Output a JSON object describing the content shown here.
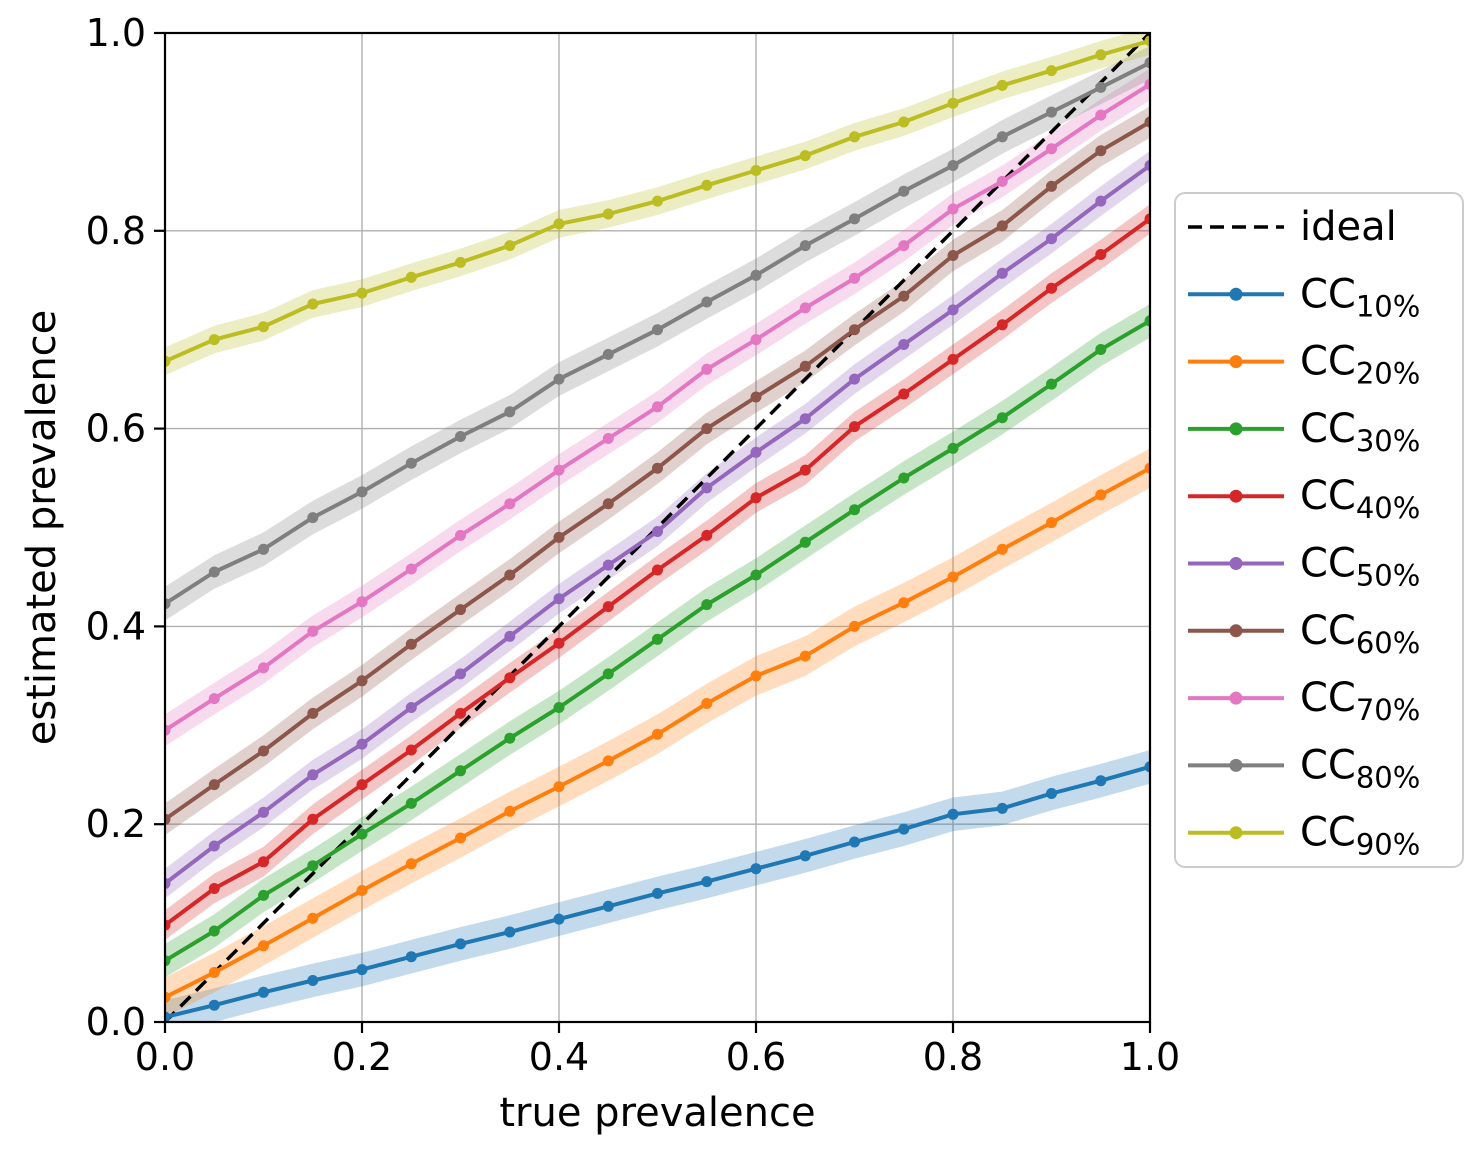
{
  "chart_data": {
    "type": "line",
    "title": "",
    "xlabel": "true prevalence",
    "ylabel": "estimated prevalence",
    "xlim": [
      0.0,
      1.0
    ],
    "ylim": [
      0.0,
      1.0
    ],
    "xticks": [
      0.0,
      0.2,
      0.4,
      0.6,
      0.8,
      1.0
    ],
    "yticks": [
      0.0,
      0.2,
      0.4,
      0.6,
      0.8,
      1.0
    ],
    "xtick_labels": [
      "0.0",
      "0.2",
      "0.4",
      "0.6",
      "0.8",
      "1.0"
    ],
    "ytick_labels": [
      "0.0",
      "0.2",
      "0.4",
      "0.6",
      "0.8",
      "1.0"
    ],
    "grid": true,
    "grid_color": "#b0b0b0",
    "legend_position": "right-outside",
    "legend_border_color": "#cccccc",
    "band_alpha": 0.27,
    "x": [
      0.0,
      0.05,
      0.1,
      0.15,
      0.2,
      0.25,
      0.3,
      0.35,
      0.4,
      0.45,
      0.5,
      0.55,
      0.6,
      0.65,
      0.7,
      0.75,
      0.8,
      0.85,
      0.9,
      0.95,
      1.0
    ],
    "series": [
      {
        "name": "ideal",
        "label": "ideal",
        "label_subscript": "",
        "color": "#000000",
        "line_style": "dashed",
        "markers": false,
        "band": 0,
        "y": [
          0.0,
          0.05,
          0.1,
          0.15,
          0.2,
          0.25,
          0.3,
          0.35,
          0.4,
          0.45,
          0.5,
          0.55,
          0.6,
          0.65,
          0.7,
          0.75,
          0.8,
          0.85,
          0.9,
          0.95,
          1.0
        ]
      },
      {
        "name": "CC-10",
        "label": "CC",
        "label_subscript": "10%",
        "color": "#1f77b4",
        "line_style": "solid",
        "markers": true,
        "band": 0.017,
        "y": [
          0.005,
          0.017,
          0.03,
          0.042,
          0.053,
          0.066,
          0.079,
          0.091,
          0.104,
          0.117,
          0.13,
          0.142,
          0.155,
          0.168,
          0.182,
          0.195,
          0.21,
          0.216,
          0.231,
          0.244,
          0.258
        ]
      },
      {
        "name": "CC-20",
        "label": "CC",
        "label_subscript": "20%",
        "color": "#ff7f0e",
        "line_style": "solid",
        "markers": true,
        "band": 0.02,
        "y": [
          0.025,
          0.05,
          0.077,
          0.105,
          0.133,
          0.16,
          0.186,
          0.213,
          0.238,
          0.264,
          0.291,
          0.322,
          0.35,
          0.37,
          0.4,
          0.424,
          0.45,
          0.478,
          0.505,
          0.533,
          0.56
        ]
      },
      {
        "name": "CC-30",
        "label": "CC",
        "label_subscript": "30%",
        "color": "#2ca02c",
        "line_style": "solid",
        "markers": true,
        "band": 0.017,
        "y": [
          0.062,
          0.092,
          0.128,
          0.158,
          0.19,
          0.221,
          0.254,
          0.287,
          0.318,
          0.352,
          0.387,
          0.422,
          0.452,
          0.485,
          0.518,
          0.55,
          0.58,
          0.611,
          0.645,
          0.68,
          0.709
        ]
      },
      {
        "name": "CC-40",
        "label": "CC",
        "label_subscript": "40%",
        "color": "#d62728",
        "line_style": "solid",
        "markers": true,
        "band": 0.015,
        "y": [
          0.098,
          0.135,
          0.162,
          0.205,
          0.24,
          0.275,
          0.312,
          0.348,
          0.383,
          0.42,
          0.457,
          0.492,
          0.53,
          0.558,
          0.602,
          0.635,
          0.67,
          0.705,
          0.742,
          0.776,
          0.812
        ]
      },
      {
        "name": "CC-50",
        "label": "CC",
        "label_subscript": "50%",
        "color": "#9467bd",
        "line_style": "solid",
        "markers": true,
        "band": 0.015,
        "y": [
          0.14,
          0.178,
          0.212,
          0.25,
          0.281,
          0.318,
          0.352,
          0.39,
          0.428,
          0.462,
          0.496,
          0.54,
          0.576,
          0.61,
          0.65,
          0.685,
          0.72,
          0.757,
          0.792,
          0.83,
          0.866
        ]
      },
      {
        "name": "CC-60",
        "label": "CC",
        "label_subscript": "60%",
        "color": "#8c564b",
        "line_style": "solid",
        "markers": true,
        "band": 0.016,
        "y": [
          0.205,
          0.24,
          0.274,
          0.312,
          0.345,
          0.382,
          0.417,
          0.452,
          0.49,
          0.524,
          0.56,
          0.6,
          0.632,
          0.663,
          0.7,
          0.734,
          0.775,
          0.805,
          0.845,
          0.881,
          0.91
        ]
      },
      {
        "name": "CC-70",
        "label": "CC",
        "label_subscript": "70%",
        "color": "#e377c2",
        "line_style": "solid",
        "markers": true,
        "band": 0.016,
        "y": [
          0.295,
          0.327,
          0.358,
          0.395,
          0.425,
          0.458,
          0.492,
          0.524,
          0.558,
          0.59,
          0.622,
          0.66,
          0.69,
          0.722,
          0.752,
          0.785,
          0.822,
          0.85,
          0.883,
          0.917,
          0.948
        ]
      },
      {
        "name": "CC-80",
        "label": "CC",
        "label_subscript": "80%",
        "color": "#7f7f7f",
        "line_style": "solid",
        "markers": true,
        "band": 0.017,
        "y": [
          0.423,
          0.455,
          0.478,
          0.51,
          0.536,
          0.565,
          0.592,
          0.617,
          0.65,
          0.675,
          0.7,
          0.728,
          0.755,
          0.785,
          0.812,
          0.84,
          0.866,
          0.895,
          0.92,
          0.945,
          0.97
        ]
      },
      {
        "name": "CC-90",
        "label": "CC",
        "label_subscript": "90%",
        "color": "#bcbd22",
        "line_style": "solid",
        "markers": true,
        "band": 0.014,
        "y": [
          0.668,
          0.69,
          0.703,
          0.726,
          0.737,
          0.753,
          0.768,
          0.785,
          0.807,
          0.817,
          0.83,
          0.846,
          0.861,
          0.876,
          0.895,
          0.91,
          0.929,
          0.947,
          0.962,
          0.978,
          0.992
        ]
      }
    ]
  }
}
